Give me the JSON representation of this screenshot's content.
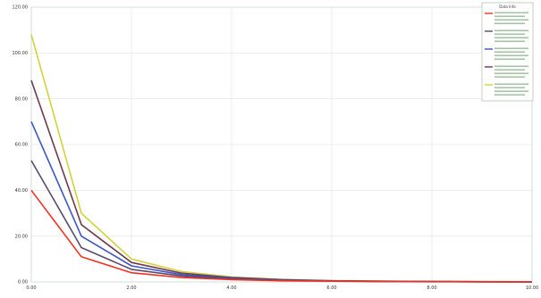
{
  "chart_data": {
    "type": "line",
    "xlabel": "",
    "ylabel": "",
    "x": [
      0,
      1,
      2,
      3,
      4,
      5,
      6,
      7,
      8,
      9,
      10
    ],
    "x_ticks": [
      0,
      2,
      4,
      6,
      8,
      10
    ],
    "x_tick_labels": [
      "0.00",
      "2.00",
      "4.00",
      "6.00",
      "8.00",
      "10.00"
    ],
    "xlim": [
      0,
      10
    ],
    "y_ticks": [
      0,
      20,
      40,
      60,
      80,
      100,
      120
    ],
    "y_tick_labels": [
      "0.00",
      "20.00",
      "40.00",
      "60.00",
      "80.00",
      "100.00",
      "120.00"
    ],
    "ylim": [
      0,
      120
    ],
    "grid": true,
    "legend_position": "top-right",
    "legend_title": "Data Info",
    "series": [
      {
        "color": "#d2d23a",
        "values": [
          108,
          30,
          10,
          4.5,
          2.2,
          1.1,
          0.6,
          0.35,
          0.2,
          0.12,
          0.08
        ]
      },
      {
        "color": "#6e3850",
        "values": [
          88,
          25,
          8.5,
          3.8,
          1.9,
          1.0,
          0.5,
          0.3,
          0.18,
          0.1,
          0.06
        ]
      },
      {
        "color": "#3a56c8",
        "values": [
          70,
          20,
          7,
          3.2,
          1.6,
          0.8,
          0.45,
          0.25,
          0.15,
          0.09,
          0.05
        ]
      },
      {
        "color": "#5a4a6e",
        "values": [
          53,
          15,
          5.5,
          2.6,
          1.3,
          0.7,
          0.4,
          0.22,
          0.12,
          0.07,
          0.04
        ]
      },
      {
        "color": "#ee3322",
        "values": [
          40,
          11,
          4,
          1.9,
          1.0,
          0.5,
          0.3,
          0.16,
          0.09,
          0.05,
          0.03
        ]
      }
    ]
  }
}
